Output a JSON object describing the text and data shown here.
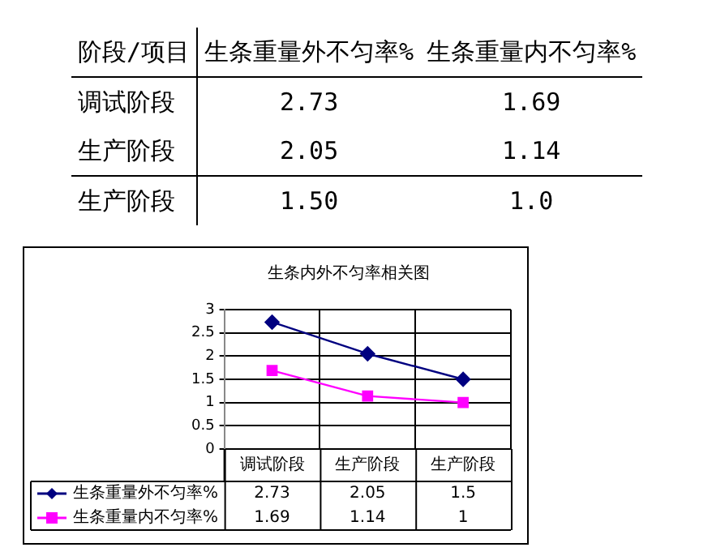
{
  "chart_data": [
    {
      "type": "other",
      "annotations": [
        "阶段/项目",
        "生条重量外不匀率%",
        "生条重量内不匀率%",
        "调试阶段",
        "2.73",
        "1.69",
        "生产阶段",
        "2.05",
        "1.14",
        "生产阶段",
        "1.50",
        "1.0"
      ]
    },
    {
      "type": "line",
      "title": "生条内外不匀率相关图",
      "categories": [
        "调试阶段",
        "生产阶段",
        "生产阶段"
      ],
      "series": [
        {
          "name": "生条重量外不匀率%",
          "color": "#000080",
          "values": [
            2.73,
            2.05,
            1.5
          ],
          "marker": "diamond"
        },
        {
          "name": "生条重量内不匀率%",
          "color": "#ff00ff",
          "values": [
            1.69,
            1.14,
            1
          ],
          "marker": "square"
        }
      ],
      "ylim": [
        0,
        3
      ],
      "yticks": [
        0,
        0.5,
        1,
        1.5,
        2,
        2.5,
        3
      ],
      "grid": true,
      "legend": "bottom",
      "data_labels": true
    }
  ]
}
